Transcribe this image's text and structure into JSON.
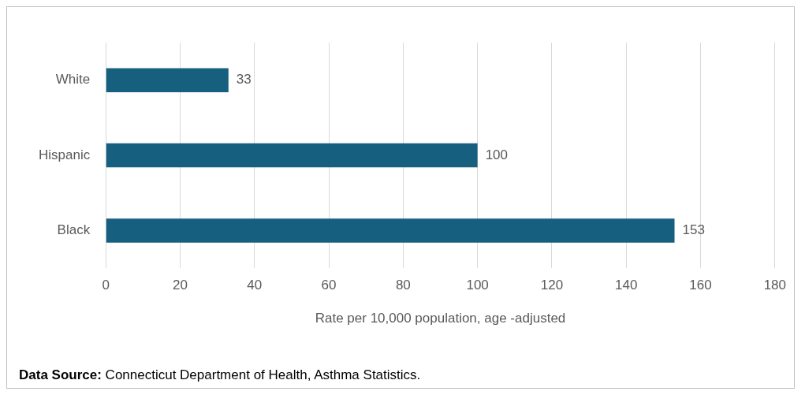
{
  "chart_data": {
    "type": "bar",
    "orientation": "horizontal",
    "categories": [
      "White",
      "Hispanic",
      "Black"
    ],
    "values": [
      33,
      100,
      153
    ],
    "color": "#175f7f",
    "xlim": [
      0,
      180
    ],
    "xticks": [
      0,
      20,
      40,
      60,
      80,
      100,
      120,
      140,
      160,
      180
    ],
    "xlabel": "Rate per 10,000 population, age -adjusted",
    "grid": "x",
    "data_labels": true,
    "legend": false,
    "annotations": [
      "Data Source: Connecticut Department of Health, Asthma Statistics."
    ]
  }
}
